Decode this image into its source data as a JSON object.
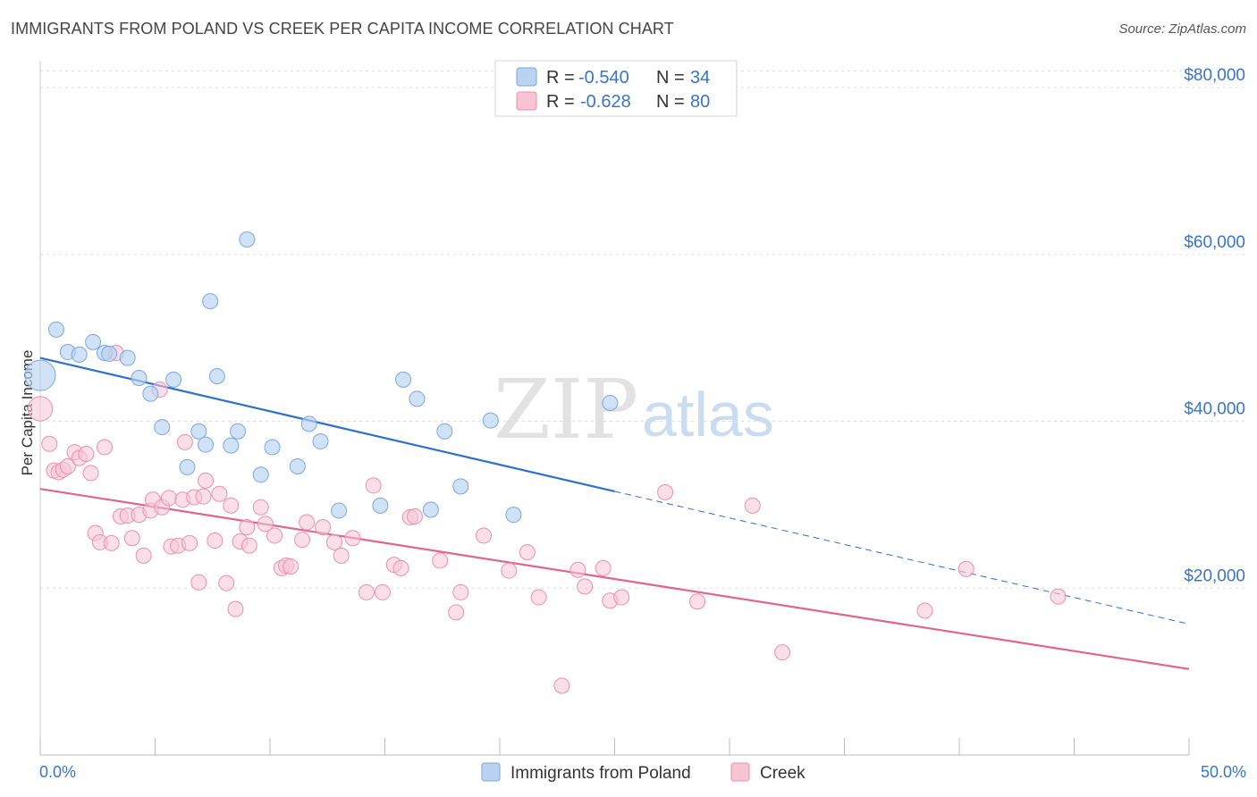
{
  "header": {
    "title": "IMMIGRANTS FROM POLAND VS CREEK PER CAPITA INCOME CORRELATION CHART",
    "source": "Source: ZipAtlas.com"
  },
  "legend_top": {
    "rows": [
      {
        "r_label": "R =",
        "r_value": "-0.540",
        "n_label": "N =",
        "n_value": "34"
      },
      {
        "r_label": "R =",
        "r_value": "-0.628",
        "n_label": "N =",
        "n_value": "80"
      }
    ]
  },
  "watermark": {
    "zip": "ZIP",
    "atlas": "atlas"
  },
  "colors": {
    "poland_fill": "#b9d3f1",
    "poland_stroke": "#7aa7df",
    "poland_line": "#2f6fcc",
    "creek_fill": "#f8c5d5",
    "creek_stroke": "#eb8fae",
    "creek_line": "#e0648f",
    "axis_text": "#3a74c4",
    "grid": "#dddddd"
  },
  "chart_data": {
    "type": "scatter",
    "title": "IMMIGRANTS FROM POLAND VS CREEK PER CAPITA INCOME CORRELATION CHART",
    "xlabel": "",
    "ylabel": "Per Capita Income",
    "xlim": [
      0,
      50
    ],
    "ylim": [
      0,
      82000
    ],
    "x_tick_labels": [
      "0.0%",
      "50.0%"
    ],
    "y_ticks": [
      20000,
      40000,
      60000,
      80000
    ],
    "y_tick_labels": [
      "$20,000",
      "$40,000",
      "$60,000",
      "$80,000"
    ],
    "grid": true,
    "legend_position": "bottom",
    "series": [
      {
        "name": "Immigrants from Poland",
        "r": -0.54,
        "n": 34,
        "trend": {
          "x0": 0,
          "y0": 47600,
          "x1": 25,
          "y1": 31600,
          "dash_x1": 50,
          "dash_y1": 15700
        },
        "points": [
          {
            "x": 0.0,
            "y": 45500,
            "s": 2.0
          },
          {
            "x": 0.7,
            "y": 51000
          },
          {
            "x": 1.2,
            "y": 48300
          },
          {
            "x": 1.7,
            "y": 48000
          },
          {
            "x": 2.3,
            "y": 49500
          },
          {
            "x": 2.8,
            "y": 48200
          },
          {
            "x": 3.0,
            "y": 48100
          },
          {
            "x": 3.8,
            "y": 47600
          },
          {
            "x": 4.3,
            "y": 45200
          },
          {
            "x": 4.8,
            "y": 43300
          },
          {
            "x": 5.3,
            "y": 39300
          },
          {
            "x": 5.8,
            "y": 45000
          },
          {
            "x": 6.4,
            "y": 34500
          },
          {
            "x": 6.9,
            "y": 38800
          },
          {
            "x": 7.2,
            "y": 37200
          },
          {
            "x": 7.4,
            "y": 54400
          },
          {
            "x": 7.7,
            "y": 45400
          },
          {
            "x": 8.3,
            "y": 37100
          },
          {
            "x": 8.6,
            "y": 38800
          },
          {
            "x": 9.0,
            "y": 61800
          },
          {
            "x": 9.6,
            "y": 33600
          },
          {
            "x": 10.1,
            "y": 36900
          },
          {
            "x": 11.2,
            "y": 34600
          },
          {
            "x": 11.7,
            "y": 39700
          },
          {
            "x": 12.2,
            "y": 37600
          },
          {
            "x": 13.0,
            "y": 29300
          },
          {
            "x": 14.8,
            "y": 29900
          },
          {
            "x": 15.8,
            "y": 45000
          },
          {
            "x": 16.4,
            "y": 42700
          },
          {
            "x": 17.0,
            "y": 29400
          },
          {
            "x": 17.6,
            "y": 38800
          },
          {
            "x": 18.3,
            "y": 32200
          },
          {
            "x": 19.6,
            "y": 40100
          },
          {
            "x": 20.6,
            "y": 28800
          },
          {
            "x": 24.8,
            "y": 42200
          }
        ]
      },
      {
        "name": "Creek",
        "r": -0.628,
        "n": 80,
        "trend": {
          "x0": 0,
          "y0": 31900,
          "x1": 50,
          "y1": 10300
        },
        "points": [
          {
            "x": 0.0,
            "y": 41500,
            "s": 1.6
          },
          {
            "x": 0.4,
            "y": 37300
          },
          {
            "x": 0.6,
            "y": 34100
          },
          {
            "x": 0.8,
            "y": 33900
          },
          {
            "x": 1.0,
            "y": 34200
          },
          {
            "x": 1.2,
            "y": 34600
          },
          {
            "x": 1.5,
            "y": 36300
          },
          {
            "x": 1.7,
            "y": 35600
          },
          {
            "x": 2.0,
            "y": 36100
          },
          {
            "x": 2.2,
            "y": 33800
          },
          {
            "x": 2.4,
            "y": 26600
          },
          {
            "x": 2.6,
            "y": 25500
          },
          {
            "x": 2.8,
            "y": 36900
          },
          {
            "x": 3.1,
            "y": 25400
          },
          {
            "x": 3.3,
            "y": 48200
          },
          {
            "x": 3.5,
            "y": 28600
          },
          {
            "x": 3.8,
            "y": 28700
          },
          {
            "x": 4.0,
            "y": 26000
          },
          {
            "x": 4.3,
            "y": 28800
          },
          {
            "x": 4.5,
            "y": 23900
          },
          {
            "x": 4.8,
            "y": 29300
          },
          {
            "x": 4.9,
            "y": 30600
          },
          {
            "x": 5.2,
            "y": 43800
          },
          {
            "x": 5.3,
            "y": 29700
          },
          {
            "x": 5.6,
            "y": 30800
          },
          {
            "x": 5.7,
            "y": 25000
          },
          {
            "x": 6.0,
            "y": 25100
          },
          {
            "x": 6.2,
            "y": 30600
          },
          {
            "x": 6.3,
            "y": 37500
          },
          {
            "x": 6.5,
            "y": 25400
          },
          {
            "x": 6.7,
            "y": 30900
          },
          {
            "x": 6.9,
            "y": 20700
          },
          {
            "x": 7.1,
            "y": 31000
          },
          {
            "x": 7.2,
            "y": 32900
          },
          {
            "x": 7.6,
            "y": 25700
          },
          {
            "x": 7.8,
            "y": 31300
          },
          {
            "x": 8.1,
            "y": 20600
          },
          {
            "x": 8.3,
            "y": 29900
          },
          {
            "x": 8.5,
            "y": 17500
          },
          {
            "x": 8.7,
            "y": 25600
          },
          {
            "x": 9.0,
            "y": 27300
          },
          {
            "x": 9.1,
            "y": 25100
          },
          {
            "x": 9.6,
            "y": 29700
          },
          {
            "x": 9.8,
            "y": 27700
          },
          {
            "x": 10.2,
            "y": 26300
          },
          {
            "x": 10.5,
            "y": 22400
          },
          {
            "x": 10.7,
            "y": 22700
          },
          {
            "x": 10.9,
            "y": 22600
          },
          {
            "x": 11.4,
            "y": 25800
          },
          {
            "x": 11.6,
            "y": 27900
          },
          {
            "x": 12.3,
            "y": 27300
          },
          {
            "x": 12.8,
            "y": 25500
          },
          {
            "x": 13.1,
            "y": 23900
          },
          {
            "x": 13.6,
            "y": 26000
          },
          {
            "x": 14.2,
            "y": 19500
          },
          {
            "x": 14.5,
            "y": 32300
          },
          {
            "x": 14.9,
            "y": 19500
          },
          {
            "x": 15.4,
            "y": 22800
          },
          {
            "x": 15.7,
            "y": 22400
          },
          {
            "x": 16.1,
            "y": 28500
          },
          {
            "x": 16.3,
            "y": 28600
          },
          {
            "x": 17.4,
            "y": 23300
          },
          {
            "x": 18.1,
            "y": 17100
          },
          {
            "x": 18.3,
            "y": 19500
          },
          {
            "x": 19.3,
            "y": 26300
          },
          {
            "x": 20.4,
            "y": 22100
          },
          {
            "x": 21.2,
            "y": 24300
          },
          {
            "x": 21.7,
            "y": 18900
          },
          {
            "x": 22.7,
            "y": 8300
          },
          {
            "x": 23.4,
            "y": 22200
          },
          {
            "x": 23.7,
            "y": 20200
          },
          {
            "x": 24.5,
            "y": 22400
          },
          {
            "x": 24.8,
            "y": 18500
          },
          {
            "x": 25.3,
            "y": 18900
          },
          {
            "x": 27.2,
            "y": 31500
          },
          {
            "x": 28.6,
            "y": 18400
          },
          {
            "x": 31.0,
            "y": 29900
          },
          {
            "x": 32.3,
            "y": 12300
          },
          {
            "x": 38.5,
            "y": 17300
          },
          {
            "x": 40.3,
            "y": 22300
          },
          {
            "x": 44.3,
            "y": 19000
          }
        ]
      }
    ]
  }
}
